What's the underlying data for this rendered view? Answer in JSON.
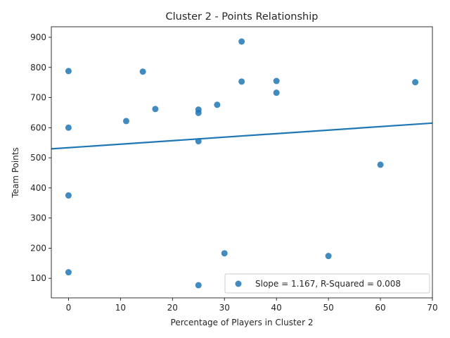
{
  "chart_data": {
    "type": "scatter",
    "title": "Cluster 2 - Points Relationship",
    "xlabel": "Percentage of Players in Cluster 2",
    "ylabel": "Team Points",
    "xlim": [
      -3.3,
      70
    ],
    "ylim": [
      35,
      935
    ],
    "x_ticks": [
      0,
      10,
      20,
      30,
      40,
      50,
      60,
      70
    ],
    "y_ticks": [
      100,
      200,
      300,
      400,
      500,
      600,
      700,
      800,
      900
    ],
    "grid": false,
    "legend_position": "lower right",
    "color": "#1f77b4",
    "series": [
      {
        "name": "Slope = 1.167, R-Squared = 0.008",
        "points": [
          {
            "x": 0,
            "y": 788
          },
          {
            "x": 0,
            "y": 600
          },
          {
            "x": 0,
            "y": 375
          },
          {
            "x": 0,
            "y": 120
          },
          {
            "x": 11.1,
            "y": 622
          },
          {
            "x": 14.3,
            "y": 786
          },
          {
            "x": 16.7,
            "y": 662
          },
          {
            "x": 25,
            "y": 660
          },
          {
            "x": 25,
            "y": 649
          },
          {
            "x": 25,
            "y": 555
          },
          {
            "x": 25,
            "y": 77
          },
          {
            "x": 28.6,
            "y": 676
          },
          {
            "x": 30,
            "y": 183
          },
          {
            "x": 33.3,
            "y": 886
          },
          {
            "x": 33.3,
            "y": 753
          },
          {
            "x": 40,
            "y": 755
          },
          {
            "x": 40,
            "y": 716
          },
          {
            "x": 50,
            "y": 174
          },
          {
            "x": 60,
            "y": 477
          },
          {
            "x": 66.7,
            "y": 751
          }
        ]
      }
    ],
    "regression": {
      "slope": 1.167,
      "intercept": 533.5
    }
  }
}
